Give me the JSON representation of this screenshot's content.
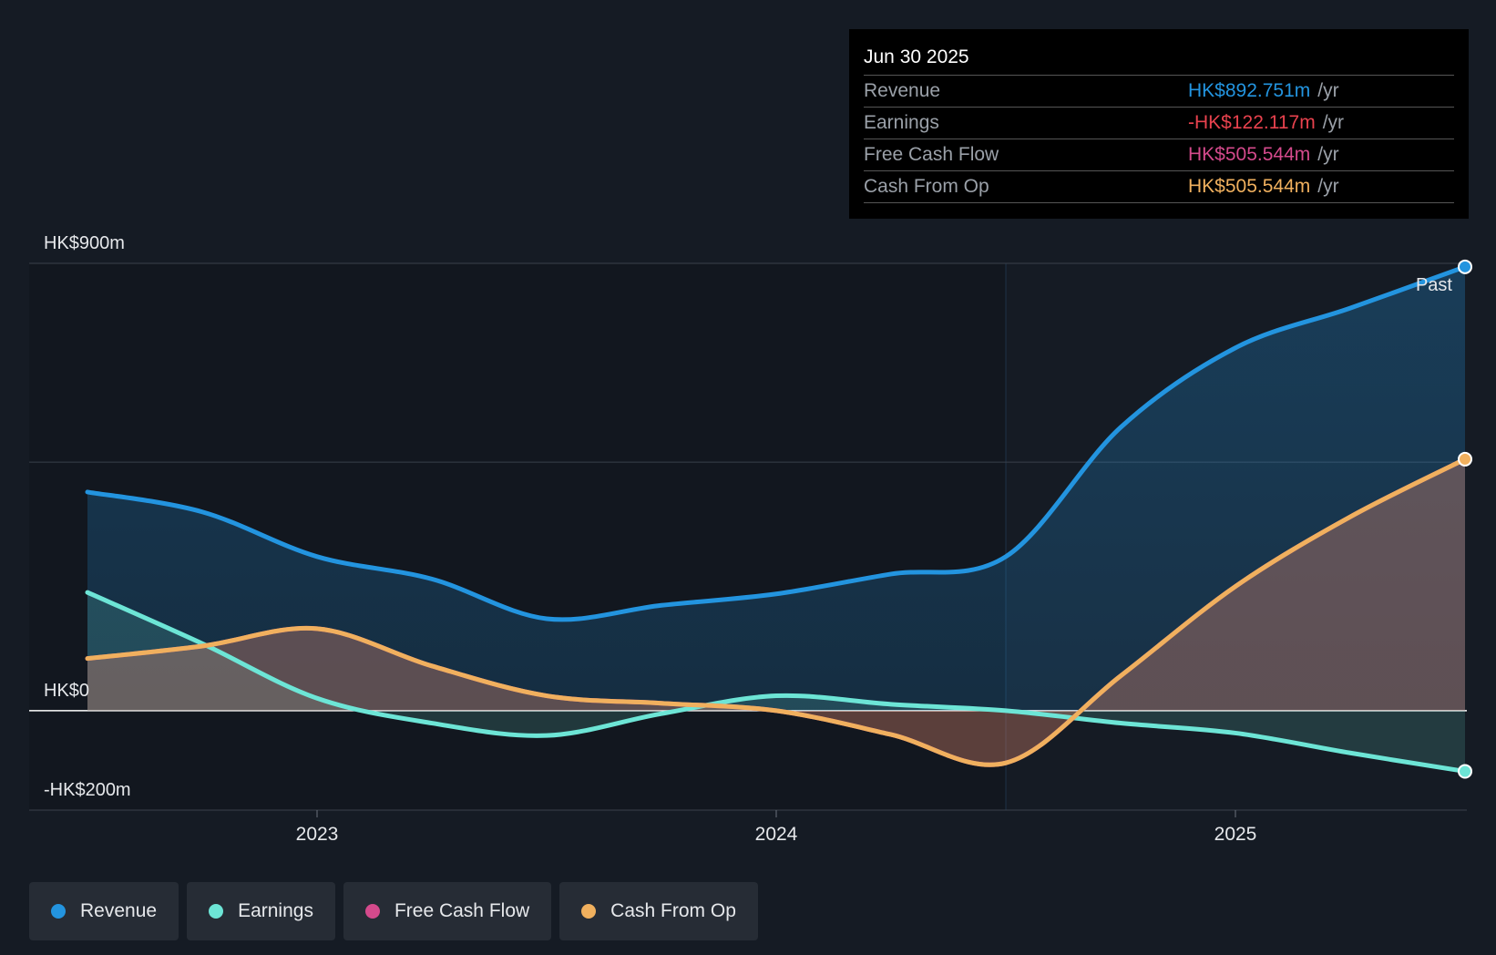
{
  "chart_data": {
    "type": "area",
    "title": "",
    "xlabel": "",
    "ylabel": "",
    "x": [
      2022.5,
      2022.75,
      2023.0,
      2023.25,
      2023.5,
      2023.75,
      2024.0,
      2024.25,
      2024.5,
      2024.75,
      2025.0,
      2025.25,
      2025.5
    ],
    "ylim": [
      -200,
      900
    ],
    "xlim": [
      2022.37,
      2025.5
    ],
    "y_axis_labels": [
      {
        "value": 900,
        "text": "HK$900m"
      },
      {
        "value": 0,
        "text": "HK$0"
      },
      {
        "value": -200,
        "text": "-HK$200m"
      }
    ],
    "gridlines": [
      900,
      500,
      0,
      -200
    ],
    "x_ticks": [
      {
        "value": 2023.0,
        "text": "2023"
      },
      {
        "value": 2024.0,
        "text": "2024"
      },
      {
        "value": 2025.0,
        "text": "2025"
      }
    ],
    "forecast_divider": 2024.5,
    "past_label": "Past",
    "series": [
      {
        "name": "Revenue",
        "color": "#2394df",
        "values": [
          440,
          400,
          310,
          265,
          185,
          212,
          235,
          275,
          310,
          570,
          730,
          810,
          893
        ]
      },
      {
        "name": "Earnings",
        "color": "#6de5d6",
        "values": [
          238,
          135,
          25,
          -25,
          -50,
          -6,
          30,
          13,
          0,
          -25,
          -45,
          -85,
          -122
        ]
      },
      {
        "name": "Free Cash Flow",
        "color": "#d44a8c",
        "values": [
          105,
          130,
          165,
          90,
          30,
          15,
          0,
          -48,
          -105,
          70,
          250,
          390,
          506
        ]
      },
      {
        "name": "Cash From Op",
        "color": "#f0b05e",
        "values": [
          105,
          130,
          165,
          90,
          30,
          15,
          0,
          -48,
          -105,
          70,
          250,
          390,
          506
        ]
      }
    ]
  },
  "tooltip": {
    "date": "Jun 30 2025",
    "rows": [
      {
        "name": "Revenue",
        "value": "HK$892.751m",
        "unit": "/yr",
        "color": "#2394df"
      },
      {
        "name": "Earnings",
        "value": "-HK$122.117m",
        "unit": "/yr",
        "color": "#e8424e"
      },
      {
        "name": "Free Cash Flow",
        "value": "HK$505.544m",
        "unit": "/yr",
        "color": "#d44a8c"
      },
      {
        "name": "Cash From Op",
        "value": "HK$505.544m",
        "unit": "/yr",
        "color": "#f0b05e"
      }
    ]
  },
  "legend": [
    {
      "label": "Revenue",
      "color": "#2394df"
    },
    {
      "label": "Earnings",
      "color": "#6de5d6"
    },
    {
      "label": "Free Cash Flow",
      "color": "#d44a8c"
    },
    {
      "label": "Cash From Op",
      "color": "#f0b05e"
    }
  ]
}
